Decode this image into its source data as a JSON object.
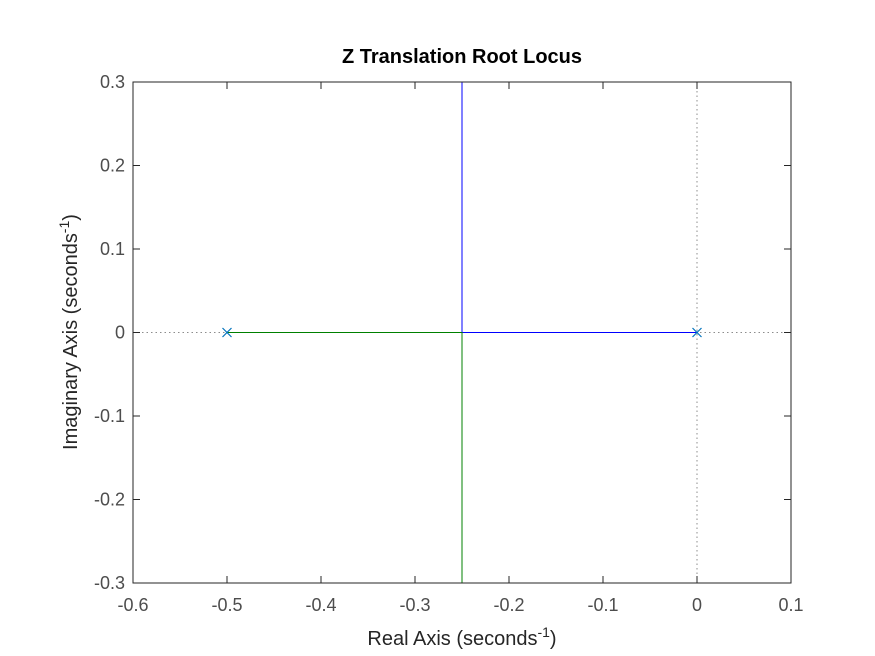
{
  "chart_data": {
    "type": "line",
    "title": "Z Translation Root Locus",
    "xlabel": {
      "base": "Real Axis (seconds",
      "sup": "-1",
      "end": ")"
    },
    "ylabel": {
      "base": "Imaginary Axis (seconds",
      "sup": "-1",
      "end": ")"
    },
    "xlim": [
      -0.6,
      0.1
    ],
    "ylim": [
      -0.3,
      0.3
    ],
    "xticks": [
      -0.6,
      -0.5,
      -0.4,
      -0.3,
      -0.2,
      -0.1,
      0,
      0.1
    ],
    "yticks": [
      -0.3,
      -0.2,
      -0.1,
      0,
      0.1,
      0.2,
      0.3
    ],
    "xtick_labels": [
      "-0.6",
      "-0.5",
      "-0.4",
      "-0.3",
      "-0.2",
      "-0.1",
      "0",
      "0.1"
    ],
    "ytick_labels": [
      "-0.3",
      "-0.2",
      "-0.1",
      "0",
      "0.1",
      "0.2",
      "0.3"
    ],
    "grid": false,
    "series": [
      {
        "color": "#0000ff",
        "x": [
          0,
          -0.25,
          -0.25
        ],
        "y": [
          0,
          0,
          0.3
        ]
      },
      {
        "color": "#008000",
        "x": [
          -0.5,
          -0.25,
          -0.25
        ],
        "y": [
          0,
          0,
          -0.3
        ]
      }
    ],
    "poles": {
      "color": "#0072bd",
      "x": [
        -0.5,
        0
      ],
      "y": [
        0,
        0
      ]
    },
    "reference_lines": {
      "color": "#8c8c8c",
      "style": "dotted",
      "x0": 0,
      "y0": 0
    }
  }
}
